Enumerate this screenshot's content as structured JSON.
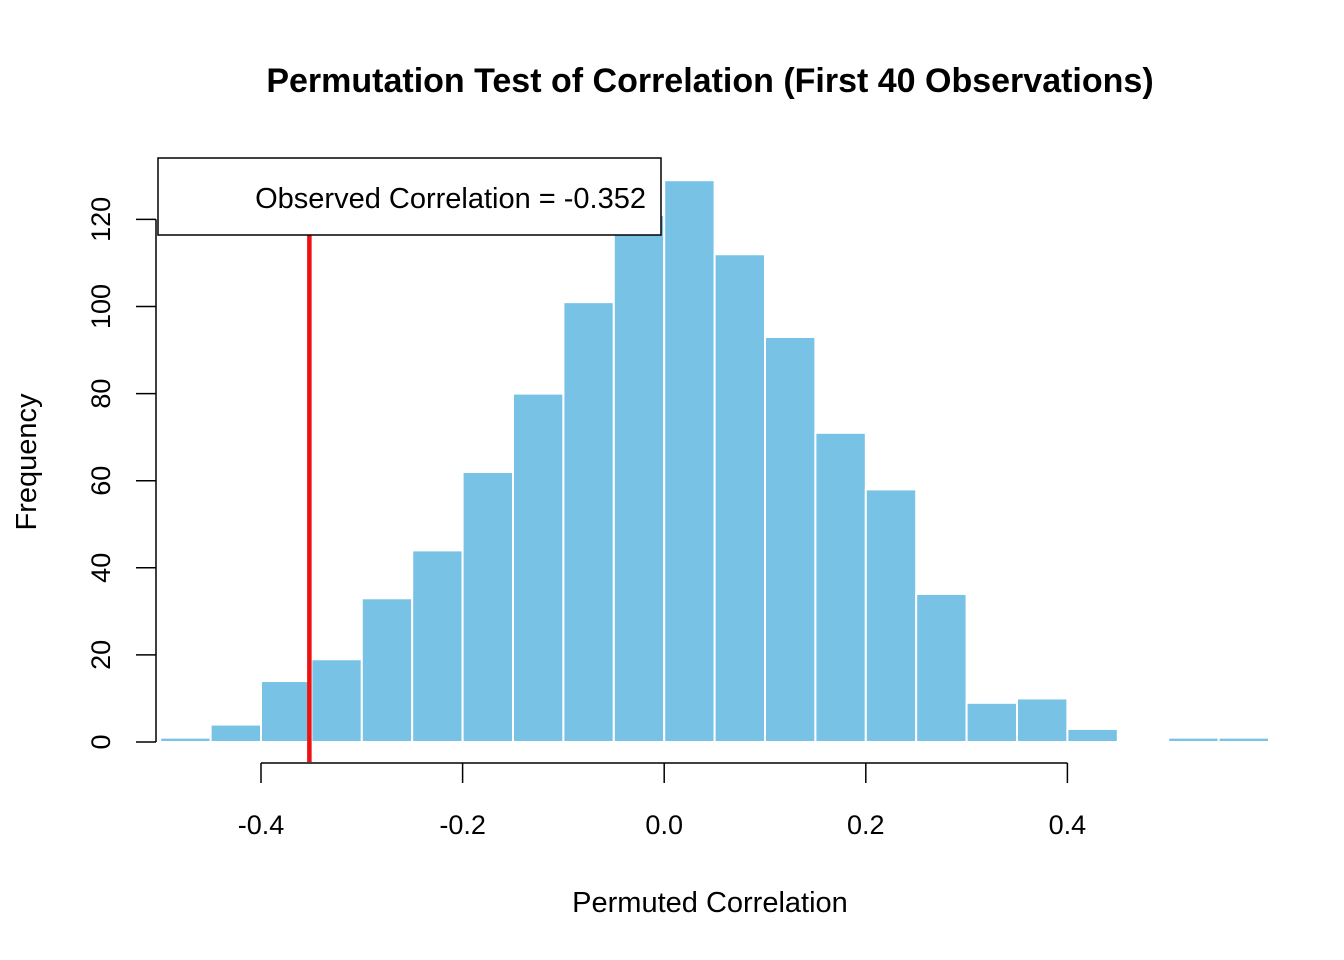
{
  "chart_data": {
    "type": "bar",
    "title": "Permutation Test of Correlation (First 40 Observations)",
    "xlabel": "Permuted Correlation",
    "ylabel": "Frequency",
    "bin_width": 0.05,
    "bins": [
      {
        "start": -0.5,
        "end": -0.45,
        "count": 1
      },
      {
        "start": -0.45,
        "end": -0.4,
        "count": 4
      },
      {
        "start": -0.4,
        "end": -0.35,
        "count": 14
      },
      {
        "start": -0.35,
        "end": -0.3,
        "count": 19
      },
      {
        "start": -0.3,
        "end": -0.25,
        "count": 33
      },
      {
        "start": -0.25,
        "end": -0.2,
        "count": 44
      },
      {
        "start": -0.2,
        "end": -0.15,
        "count": 62
      },
      {
        "start": -0.15,
        "end": -0.1,
        "count": 80
      },
      {
        "start": -0.1,
        "end": -0.05,
        "count": 101
      },
      {
        "start": -0.05,
        "end": 0.0,
        "count": 121
      },
      {
        "start": 0.0,
        "end": 0.05,
        "count": 129
      },
      {
        "start": 0.05,
        "end": 0.1,
        "count": 112
      },
      {
        "start": 0.1,
        "end": 0.15,
        "count": 93
      },
      {
        "start": 0.15,
        "end": 0.2,
        "count": 71
      },
      {
        "start": 0.2,
        "end": 0.25,
        "count": 58
      },
      {
        "start": 0.25,
        "end": 0.3,
        "count": 34
      },
      {
        "start": 0.3,
        "end": 0.35,
        "count": 9
      },
      {
        "start": 0.35,
        "end": 0.4,
        "count": 10
      },
      {
        "start": 0.4,
        "end": 0.45,
        "count": 3
      },
      {
        "start": 0.45,
        "end": 0.5,
        "count": 0
      },
      {
        "start": 0.5,
        "end": 0.55,
        "count": 1
      },
      {
        "start": 0.55,
        "end": 0.6,
        "count": 1
      }
    ],
    "x_ticks": [
      -0.4,
      -0.2,
      0.0,
      0.2,
      0.4
    ],
    "x_tick_labels": [
      "-0.4",
      "-0.2",
      "0.0",
      "0.2",
      "0.4"
    ],
    "y_ticks": [
      0,
      20,
      40,
      60,
      80,
      100,
      120
    ],
    "y_tick_labels": [
      "0",
      "20",
      "40",
      "60",
      "80",
      "100",
      "120"
    ],
    "xlim": [
      -0.5,
      0.6
    ],
    "ylim": [
      0,
      129
    ],
    "grid": false,
    "observed_value": -0.352,
    "legend": {
      "text": "Observed Correlation = -0.352",
      "position": "top-left"
    },
    "colors": {
      "bar_fill": "#78C3E5",
      "bar_border": "#ffffff",
      "observed_line": "#EE1111",
      "axis": "#000000"
    }
  }
}
